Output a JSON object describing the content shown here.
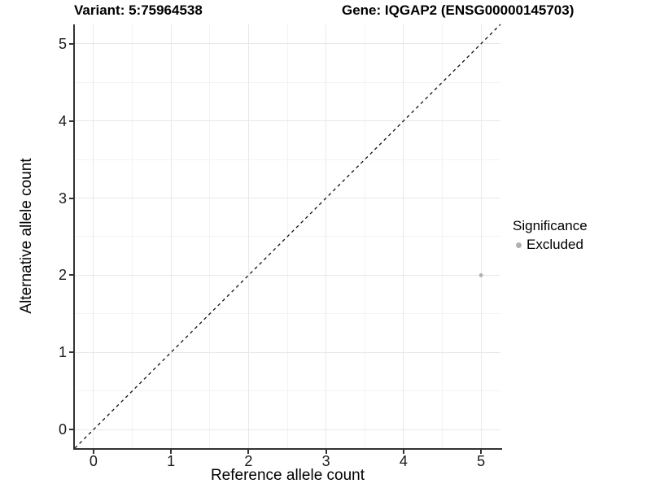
{
  "header": {
    "title_left": "Variant: 5:75964538",
    "title_right": "Gene: IQGAP2 (ENSG00000145703)"
  },
  "axes": {
    "x": {
      "label": "Reference allele count"
    },
    "y": {
      "label": "Alternative allele count"
    }
  },
  "legend": {
    "title": "Significance",
    "position": "right",
    "items": [
      {
        "label": "Excluded",
        "color": "#b0b0b0"
      }
    ]
  },
  "chart_data": {
    "type": "scatter",
    "title": "Variant: 5:75964538   Gene: IQGAP2 (ENSG00000145703)",
    "xlabel": "Reference allele count",
    "ylabel": "Alternative allele count",
    "xlim": [
      -0.24,
      5.25
    ],
    "ylim": [
      -0.24,
      5.25
    ],
    "x_ticks": [
      0,
      1,
      2,
      3,
      4,
      5
    ],
    "y_ticks": [
      0,
      1,
      2,
      3,
      4,
      5
    ],
    "x_minor_ticks": [
      0.5,
      1.5,
      2.5,
      3.5,
      4.5
    ],
    "y_minor_ticks": [
      0.5,
      1.5,
      2.5,
      3.5,
      4.5
    ],
    "grid": {
      "on": true,
      "major_color": "#e8e8e8",
      "minor_color": "#f3f3f3"
    },
    "series": [
      {
        "name": "Excluded",
        "color": "#b0b0b0",
        "marker_radius": 2.4,
        "points": [
          {
            "x": 5,
            "y": 2
          }
        ]
      }
    ],
    "reference_line": {
      "type": "identity",
      "slope": 1,
      "intercept": 0,
      "style": "dashed",
      "color": "#111111"
    }
  }
}
